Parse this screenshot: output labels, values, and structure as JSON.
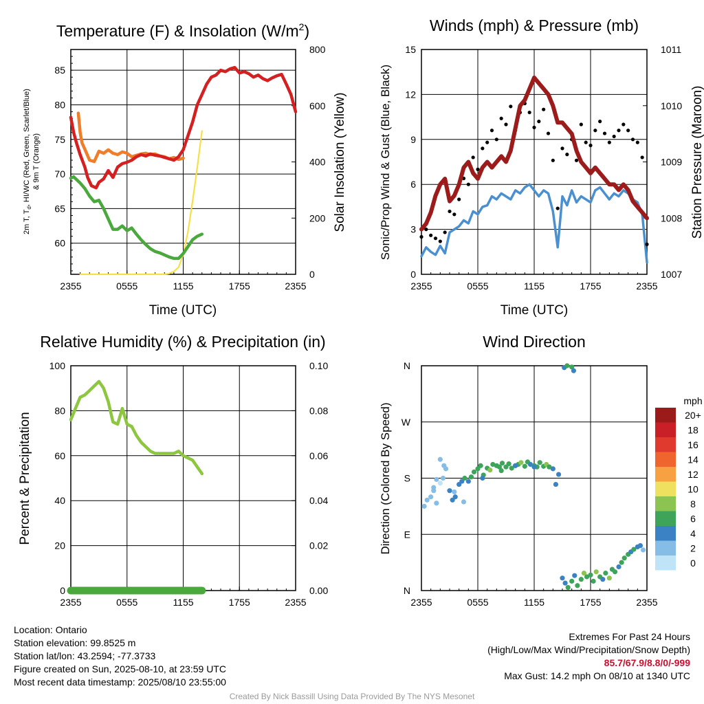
{
  "chart_data": [
    {
      "id": "temperature",
      "type": "line",
      "title": "Temperature (F) & Insolation (W/m",
      "title_sup": "2",
      "title_close": ")",
      "ylabel_lines": [
        "2m T, T",
        "d",
        ", HI/WC (Red, Green, Scarlet/Blue)",
        "& 9m T (Orange)"
      ],
      "y2label": "Solar Insolation (Yellow)",
      "xlabel": "Time (UTC)",
      "xticks": [
        "2355",
        "0555",
        "1155",
        "1755",
        "2355"
      ],
      "ylim": [
        55.5,
        88
      ],
      "yticks": [
        60,
        65,
        70,
        75,
        80,
        85
      ],
      "y2lim": [
        0,
        800
      ],
      "y2ticks": [
        0,
        200,
        400,
        600,
        800
      ],
      "colors": {
        "t2m": "#d42020",
        "dewpoint": "#4aa83c",
        "t9m": "#f07d2a",
        "heat_index": "#c81e1e",
        "solar": "#f5e04a"
      },
      "series": [
        {
          "key": "t2m",
          "x": [
            0,
            0.3,
            0.6,
            1.0,
            1.5,
            1.8,
            2.2,
            2.7,
            3.0,
            3.5,
            4.0,
            4.5,
            5.0,
            5.5,
            6.0,
            6.5,
            7.0,
            7.5,
            8.0,
            8.5,
            9.0,
            9.5,
            10.0,
            10.5,
            11.0,
            11.5,
            12.0,
            12.5,
            13.0,
            13.5,
            14.0,
            14.5,
            15.0,
            15.5,
            16.0,
            16.5,
            17.0,
            17.5,
            18.0,
            18.5,
            19.0,
            19.5,
            20.0,
            20.5,
            21.0,
            21.5,
            22.0,
            22.5,
            23.0,
            23.5,
            24.0
          ],
          "y": [
            78.2,
            76.0,
            74.5,
            72.8,
            71.0,
            69.5,
            68.3,
            68.0,
            68.8,
            69.3,
            70.5,
            69.5,
            71.0,
            71.5,
            71.7,
            72.0,
            72.5,
            72.8,
            72.6,
            72.9,
            72.7,
            72.6,
            72.4,
            72.2,
            72.0,
            72.5,
            73.5,
            75.5,
            77.5,
            80.0,
            81.5,
            83.0,
            84.0,
            84.3,
            85.0,
            84.8,
            85.2,
            85.4,
            84.6,
            84.8,
            84.5,
            84.0,
            84.3,
            83.8,
            83.5,
            83.9,
            84.2,
            84.4,
            83.0,
            81.5,
            79.0
          ]
        },
        {
          "key": "t9m",
          "x": [
            0.8,
            1.0,
            1.2,
            1.5,
            2.0,
            2.5,
            3.0,
            3.5,
            4.0,
            4.5,
            5.0,
            5.5,
            6.0,
            6.5,
            7.0,
            7.5,
            8.0,
            8.5,
            9.0,
            9.5,
            10.0,
            10.5,
            11.0,
            11.5,
            12.0
          ],
          "y": [
            78.8,
            76.0,
            74.5,
            73.6,
            72.0,
            71.8,
            73.3,
            73.0,
            73.5,
            73.0,
            72.8,
            73.2,
            73.0,
            72.5,
            72.7,
            72.9,
            73.0,
            72.8,
            72.9,
            72.6,
            72.5,
            72.2,
            72.4,
            72.1,
            72.3
          ]
        },
        {
          "key": "dewpoint",
          "x": [
            0,
            0.3,
            1.0,
            1.5,
            2.0,
            2.5,
            3.0,
            3.5,
            4.0,
            4.5,
            5.0,
            5.5,
            6.0,
            6.5,
            7.0,
            7.5,
            8.0,
            8.5,
            9.0,
            9.5,
            10.0,
            10.5,
            11.0,
            11.5,
            12.0,
            12.5,
            13.0,
            13.5,
            14.0
          ],
          "y": [
            69.4,
            69.6,
            68.7,
            67.9,
            66.8,
            66.0,
            66.2,
            65.0,
            63.5,
            62.0,
            62.0,
            62.5,
            61.8,
            62.2,
            61.3,
            60.5,
            59.8,
            59.2,
            58.8,
            58.6,
            58.3,
            58.0,
            57.8,
            57.8,
            58.5,
            59.5,
            60.5,
            61.0,
            61.3
          ]
        },
        {
          "key": "solar",
          "x": [
            1.0,
            2.0,
            4.0,
            6.0,
            8.0,
            10.0,
            10.5,
            11.0,
            11.5,
            12.0,
            12.5,
            13.0,
            13.5,
            14.0
          ],
          "y": [
            0,
            0,
            0,
            0,
            0,
            0,
            3,
            10,
            25,
            70,
            150,
            260,
            380,
            510
          ]
        }
      ]
    },
    {
      "id": "winds",
      "type": "scatter",
      "title": "Winds (mph) & Pressure (mb)",
      "ylabel": "Sonic/Prop Wind & Gust (Blue, Black)",
      "y2label": "Station Pressure (Maroon)",
      "xlabel": "Time (UTC)",
      "xticks": [
        "2355",
        "0555",
        "1155",
        "1755",
        "2355"
      ],
      "ylim": [
        0,
        15
      ],
      "yticks": [
        0,
        3,
        6,
        9,
        12,
        15
      ],
      "y2lim": [
        1007,
        1011
      ],
      "y2ticks": [
        1007,
        1008,
        1009,
        1010,
        1011
      ],
      "colors": {
        "wind": "#4a90d0",
        "gust": "#000000",
        "pressure": "#9c1c1c"
      },
      "series": [
        {
          "key": "wind",
          "x": [
            0,
            0.5,
            1,
            1.5,
            2,
            2.5,
            3,
            3.5,
            4,
            4.5,
            5,
            5.5,
            6,
            6.5,
            7,
            7.5,
            8,
            8.5,
            9,
            9.5,
            10,
            10.5,
            11,
            11.5,
            12,
            12.5,
            13,
            13.5,
            14,
            14.5,
            15,
            15.5,
            16,
            16.5,
            17,
            17.5,
            18,
            18.5,
            19,
            19.5,
            20,
            20.5,
            21,
            21.5,
            22,
            22.5,
            23,
            23.5,
            24
          ],
          "y": [
            1.2,
            1.8,
            1.5,
            1.3,
            1.9,
            1.4,
            2.8,
            3.0,
            3.2,
            3.6,
            3.4,
            4.2,
            4.0,
            4.5,
            4.6,
            5.2,
            5.0,
            5.4,
            5.2,
            5.0,
            5.6,
            5.4,
            5.8,
            6.0,
            5.6,
            5.2,
            5.6,
            5.4,
            4.2,
            1.8,
            5.2,
            4.6,
            5.6,
            4.8,
            5.2,
            5.0,
            4.8,
            5.6,
            5.8,
            5.4,
            5.0,
            5.4,
            5.2,
            5.6,
            5.4,
            5.0,
            4.8,
            4.0,
            0.8
          ]
        },
        {
          "key": "gust",
          "x": [
            0,
            0.5,
            1,
            1.5,
            2,
            2.5,
            3,
            3.5,
            4,
            4.5,
            5,
            5.5,
            6,
            6.5,
            7,
            7.5,
            8,
            8.5,
            9,
            9.5,
            10,
            10.5,
            11,
            11.5,
            12,
            12.5,
            13,
            13.5,
            14,
            14.5,
            15,
            15.5,
            16,
            16.5,
            17,
            17.5,
            18,
            18.5,
            19,
            19.5,
            20,
            20.5,
            21,
            21.5,
            22,
            22.5,
            23,
            23.5,
            24
          ],
          "y": [
            2.5,
            3.0,
            2.6,
            2.4,
            2.2,
            2.8,
            4.2,
            4.0,
            5.0,
            6.4,
            6.0,
            7.8,
            7.0,
            8.4,
            8.8,
            9.6,
            9.0,
            10.4,
            10.0,
            11.2,
            9.6,
            10.8,
            11.4,
            10.8,
            9.8,
            10.2,
            11.0,
            9.4,
            7.6,
            4.4,
            8.4,
            8.0,
            9.0,
            7.6,
            10.0,
            8.8,
            8.6,
            9.6,
            10.2,
            9.4,
            8.8,
            9.2,
            9.6,
            10.0,
            9.6,
            9.0,
            8.8,
            7.8,
            2.0
          ]
        },
        {
          "key": "pressure",
          "x": [
            0,
            0.5,
            1,
            1.5,
            2,
            2.5,
            3,
            3.5,
            4,
            4.5,
            5,
            5.5,
            6,
            6.5,
            7,
            7.5,
            8,
            8.5,
            9,
            9.5,
            10,
            10.5,
            11,
            11.5,
            12,
            12.5,
            13,
            13.5,
            14,
            14.5,
            15,
            15.5,
            16,
            16.5,
            17,
            17.5,
            18,
            18.5,
            19,
            19.5,
            20,
            20.5,
            21,
            21.5,
            22,
            22.5,
            23,
            23.5,
            24
          ],
          "y": [
            1007.8,
            1007.9,
            1008.1,
            1008.4,
            1008.6,
            1008.7,
            1008.3,
            1008.4,
            1008.6,
            1008.9,
            1009.0,
            1008.8,
            1008.7,
            1008.9,
            1009.0,
            1008.9,
            1009.0,
            1009.1,
            1009.0,
            1009.2,
            1009.6,
            1010.0,
            1010.1,
            1010.3,
            1010.5,
            1010.4,
            1010.3,
            1010.2,
            1010.0,
            1009.7,
            1009.7,
            1009.6,
            1009.5,
            1009.2,
            1009.0,
            1008.9,
            1008.8,
            1008.9,
            1008.8,
            1008.7,
            1008.6,
            1008.6,
            1008.5,
            1008.6,
            1008.5,
            1008.3,
            1008.2,
            1008.1,
            1008.0
          ]
        }
      ]
    },
    {
      "id": "humidity",
      "type": "line",
      "title": "Relative Humidity (%) & Precipitation (in)",
      "ylabel": "Percent & Precipitation",
      "xticks": [
        "2355",
        "0555",
        "1155",
        "1755",
        "2355"
      ],
      "ylim": [
        0,
        100
      ],
      "yticks": [
        0,
        20,
        40,
        60,
        80,
        100
      ],
      "y2lim": [
        0,
        0.1
      ],
      "y2ticks": [
        "0.00",
        "0.02",
        "0.04",
        "0.06",
        "0.08",
        "0.10"
      ],
      "colors": {
        "rh": "#8dc63f",
        "precip": "#4aa83c"
      },
      "series": [
        {
          "key": "rh",
          "x": [
            0,
            0.2,
            1.0,
            1.5,
            2.0,
            2.5,
            3.0,
            3.5,
            4.0,
            4.5,
            5.0,
            5.5,
            6.0,
            6.5,
            7.0,
            7.5,
            8.0,
            8.5,
            9.0,
            9.5,
            10.0,
            10.5,
            11.0,
            11.5,
            12.0,
            12.5,
            13.0,
            13.5,
            14.0
          ],
          "y": [
            76,
            78,
            86,
            87,
            89,
            91,
            93,
            90,
            84,
            75,
            74,
            81,
            74,
            73,
            69,
            66,
            64,
            62,
            61,
            61,
            61,
            61,
            61,
            62,
            60,
            59,
            58,
            55,
            52
          ]
        },
        {
          "key": "precip",
          "x": [
            0,
            14
          ],
          "y": [
            0,
            0
          ]
        }
      ]
    },
    {
      "id": "wind_direction",
      "type": "scatter",
      "title": "Wind Direction",
      "ylabel": "Direction (Colored By Speed)",
      "xticks": [
        "2355",
        "0555",
        "1155",
        "1755",
        "2355"
      ],
      "yticks": [
        "N",
        "E",
        "S",
        "W",
        "N"
      ],
      "ylim": [
        0,
        360
      ],
      "legend_title": "mph",
      "legend_labels": [
        "20+",
        "18",
        "16",
        "14",
        "12",
        "10",
        "8",
        "6",
        "4",
        "2",
        "0"
      ],
      "legend_colors": [
        "#9b1b1b",
        "#c92027",
        "#e03a2f",
        "#f0652d",
        "#f7a142",
        "#f0e060",
        "#8cc452",
        "#3da45a",
        "#3a82c4",
        "#86bde6",
        "#bfe3f7"
      ],
      "series": [
        {
          "key": "direction",
          "x": [
            0.3,
            0.6,
            1.0,
            1.3,
            1.6,
            2.0,
            2.3,
            2.6,
            3.0,
            3.3,
            3.6,
            4.0,
            4.3,
            4.6,
            5.0,
            5.3,
            5.6,
            6.0,
            6.3,
            6.6,
            7.0,
            7.3,
            7.6,
            8.0,
            8.3,
            8.6,
            9.0,
            9.3,
            9.6,
            10.0,
            10.3,
            10.6,
            11.0,
            11.3,
            11.6,
            12.0,
            12.3,
            12.6,
            13.0,
            13.3,
            13.6,
            14.0,
            14.3,
            14.6,
            15.0,
            15.3,
            15.6,
            16.0,
            16.3,
            16.6,
            17.0,
            17.3,
            17.6,
            18.0,
            18.3,
            18.6,
            19.0,
            19.3,
            19.6,
            20.0,
            20.3,
            20.6,
            21.0,
            21.3,
            21.6,
            22.0,
            22.3,
            22.6,
            23.0,
            23.3,
            23.6,
            15.2,
            15.5,
            16.0,
            16.2,
            1.3,
            1.6,
            2.0,
            2.4,
            3.5,
            4.5,
            6.5,
            8.5,
            10.0,
            12.0
          ],
          "y": [
            135,
            145,
            150,
            165,
            140,
            210,
            180,
            195,
            160,
            145,
            150,
            170,
            175,
            180,
            175,
            182,
            190,
            195,
            200,
            185,
            196,
            193,
            202,
            200,
            198,
            204,
            198,
            203,
            196,
            200,
            202,
            205,
            199,
            206,
            202,
            200,
            198,
            205,
            199,
            202,
            198,
            195,
            170,
            186,
            20,
            12,
            5,
            15,
            24,
            8,
            18,
            28,
            22,
            25,
            15,
            30,
            22,
            18,
            28,
            20,
            34,
            30,
            38,
            45,
            52,
            58,
            62,
            66,
            70,
            72,
            65,
            357,
            360,
            358,
            352,
            160,
            178,
            172,
            200,
            158,
            142,
            180,
            192,
            200,
            198
          ],
          "speed": [
            1,
            1,
            1,
            2,
            1,
            1,
            2,
            2,
            3,
            3,
            4,
            4,
            4,
            5,
            4,
            5,
            5,
            5,
            6,
            5,
            6,
            7,
            5,
            5,
            6,
            5,
            5,
            6,
            5,
            6,
            5,
            7,
            6,
            5,
            4,
            6,
            5,
            6,
            6,
            7,
            5,
            4,
            3,
            3,
            3,
            4,
            5,
            6,
            4,
            6,
            5,
            7,
            6,
            5,
            6,
            7,
            5,
            4,
            6,
            7,
            5,
            6,
            4,
            5,
            6,
            5,
            4,
            5,
            4,
            3,
            2,
            3,
            5,
            6,
            4,
            1,
            1,
            0,
            1,
            2,
            2,
            4,
            5,
            4,
            4
          ]
        }
      ]
    }
  ],
  "footer": {
    "location": "Location: Ontario",
    "elevation": "Station elevation: 99.8525 m",
    "latlon": "Station lat/lon: 43.2594; -77.3733",
    "created": "Figure created on Sun, 2025-08-10, at 23:59 UTC",
    "recent": "Most recent data timestamp: 2025/08/10 23:55:00",
    "extremes_title": "Extremes For Past 24 Hours",
    "extremes_desc": "(High/Low/Max Wind/Precipitation/Snow Depth)",
    "extremes_values": "85.7/67.9/8.8/0/-999",
    "max_gust": "Max Gust: 14.2 mph On 08/10 at 1340 UTC"
  },
  "credit": "Created By Nick Bassill Using Data Provided By The NYS Mesonet"
}
